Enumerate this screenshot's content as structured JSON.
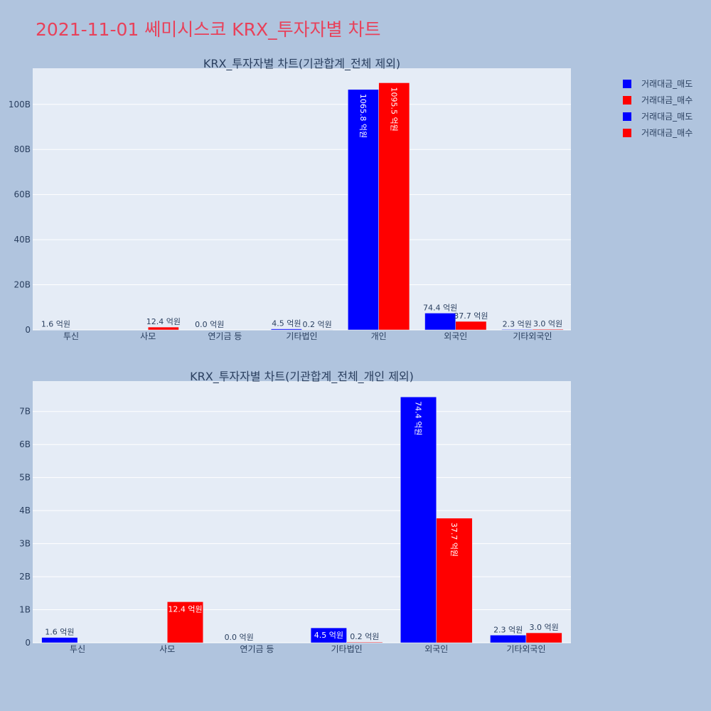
{
  "title": "2021-11-01 쎄미시스코 KRX_투자자별 차트",
  "colors": {
    "sell": "#0000ff",
    "buy": "#ff0000",
    "plot_bg": "#e5ecf6",
    "page_bg": "#b0c4de",
    "title": "#e8415a"
  },
  "legend": [
    {
      "label": "거래대금_매도",
      "color": "#0000ff"
    },
    {
      "label": "거래대금_매수",
      "color": "#ff0000"
    },
    {
      "label": "거래대금_매도",
      "color": "#0000ff"
    },
    {
      "label": "거래대금_매수",
      "color": "#ff0000"
    }
  ],
  "chart_data": [
    {
      "type": "bar",
      "title": "KRX_투자자별 차트(기관합계_전체 제외)",
      "categories": [
        "투신",
        "사모",
        "연기금 등",
        "기타법인",
        "개인",
        "외국인",
        "기타외국인"
      ],
      "series": [
        {
          "name": "거래대금_매도",
          "values": [
            0.16,
            0,
            0.0,
            0.45,
            106.58,
            7.44,
            0.23
          ],
          "labels": [
            "1.6 억원",
            "",
            "0.0 억원",
            "4.5 억원",
            "1065.8 억원",
            "74.4 억원",
            "2.3 억원"
          ]
        },
        {
          "name": "거래대금_매수",
          "values": [
            0,
            1.24,
            0,
            0.02,
            109.55,
            3.77,
            0.3
          ],
          "labels": [
            "",
            "12.4 억원",
            "",
            "0.2 억원",
            "1095.5 억원",
            "37.7 억원",
            "3.0 억원"
          ]
        }
      ],
      "ylim": [
        0,
        116
      ],
      "yticks": [
        0,
        20,
        40,
        60,
        80,
        100
      ],
      "ytick_labels": [
        "0",
        "20B",
        "40B",
        "60B",
        "80B",
        "100B"
      ],
      "grid": true
    },
    {
      "type": "bar",
      "title": "KRX_투자자별 차트(기관합계_전체_개인 제외)",
      "categories": [
        "투신",
        "사모",
        "연기금 등",
        "기타법인",
        "외국인",
        "기타외국인"
      ],
      "series": [
        {
          "name": "거래대금_매도",
          "values": [
            0.16,
            0,
            0.0,
            0.45,
            7.44,
            0.23
          ],
          "labels": [
            "1.6 억원",
            "",
            "0.0 억원",
            "4.5 억원",
            "74.4 억원",
            "2.3 억원"
          ]
        },
        {
          "name": "거래대금_매수",
          "values": [
            0,
            1.24,
            0,
            0.02,
            3.77,
            0.3
          ],
          "labels": [
            "",
            "12.4 억원",
            "",
            "0.2 억원",
            "37.7 억원",
            "3.0 억원"
          ]
        }
      ],
      "ylim": [
        0,
        7.92
      ],
      "yticks": [
        0,
        1,
        2,
        3,
        4,
        5,
        6,
        7
      ],
      "ytick_labels": [
        "0",
        "1B",
        "2B",
        "3B",
        "4B",
        "5B",
        "6B",
        "7B"
      ],
      "grid": true
    }
  ]
}
